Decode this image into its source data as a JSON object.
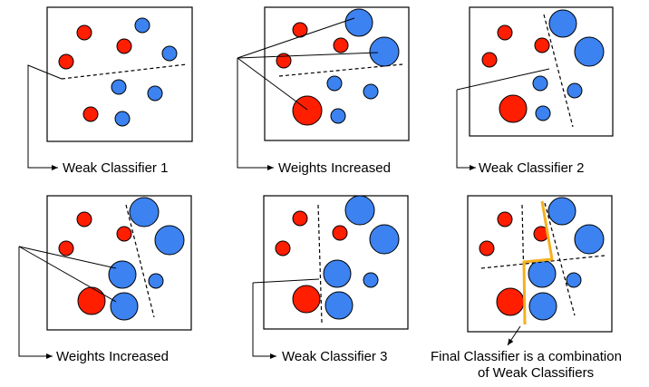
{
  "panels": [
    {
      "caption": "Weak Classifier 1"
    },
    {
      "caption": "Weights Increased"
    },
    {
      "caption": "Weak Classifier 2"
    },
    {
      "caption": "Weights Increased"
    },
    {
      "caption": "Weak Classifier 3"
    },
    {
      "caption_line1": "Final Classifier is a combination",
      "caption_line2": "of Weak Classifiers"
    }
  ],
  "colors": {
    "negative": "#ff1e00",
    "positive": "#3c82f0",
    "combined_boundary": "#f5b020"
  }
}
